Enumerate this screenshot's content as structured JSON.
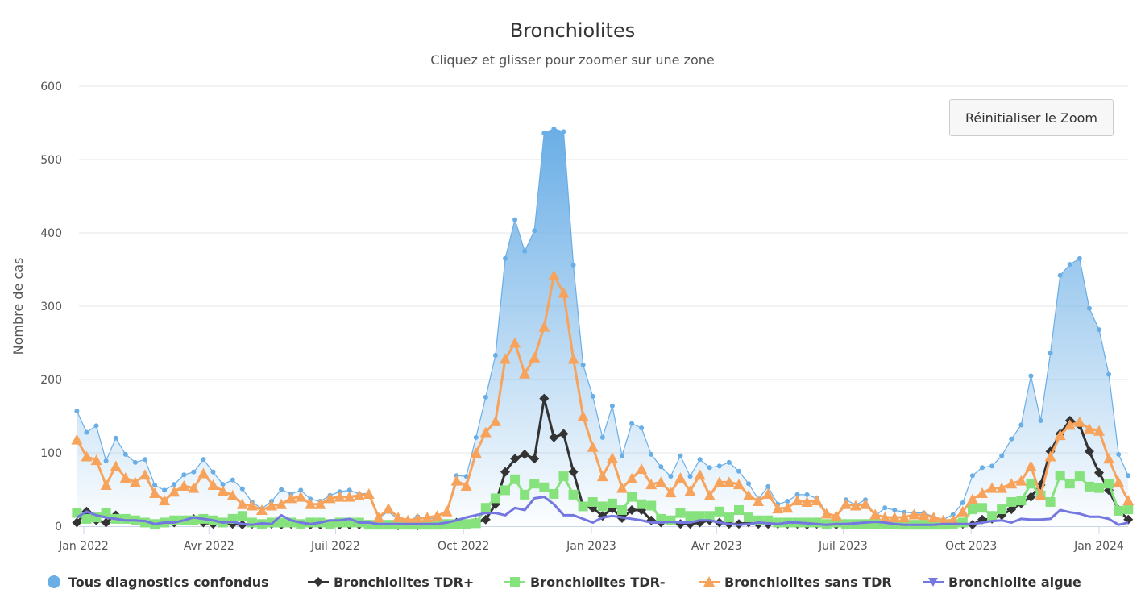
{
  "chart_data": {
    "type": "line",
    "title": "Bronchiolites",
    "subtitle": "Cliquez et glisser pour zoomer sur une zone",
    "ylabel": "Nombre de cas",
    "xlabel": "",
    "ylim": [
      0,
      600
    ],
    "y_ticks": [
      "0",
      "100",
      "200",
      "300",
      "400",
      "500",
      "600"
    ],
    "x_ticks": [
      {
        "label": "Jan 2022",
        "date": "2022-01-01"
      },
      {
        "label": "Avr 2022",
        "date": "2022-04-01"
      },
      {
        "label": "Juil 2022",
        "date": "2022-07-01"
      },
      {
        "label": "Oct 2022",
        "date": "2022-10-01"
      },
      {
        "label": "Jan 2023",
        "date": "2023-01-01"
      },
      {
        "label": "Avr 2023",
        "date": "2023-04-01"
      },
      {
        "label": "Juil 2023",
        "date": "2023-07-01"
      },
      {
        "label": "Oct 2023",
        "date": "2023-10-01"
      },
      {
        "label": "Jan 2024",
        "date": "2024-01-01"
      }
    ],
    "grid": true,
    "legend_position": "bottom",
    "x": [
      "2021-12-27",
      "2022-01-03",
      "2022-01-10",
      "2022-01-17",
      "2022-01-24",
      "2022-01-31",
      "2022-02-07",
      "2022-02-14",
      "2022-02-21",
      "2022-02-28",
      "2022-03-07",
      "2022-03-14",
      "2022-03-21",
      "2022-03-28",
      "2022-04-04",
      "2022-04-11",
      "2022-04-18",
      "2022-04-25",
      "2022-05-02",
      "2022-05-09",
      "2022-05-16",
      "2022-05-23",
      "2022-05-30",
      "2022-06-06",
      "2022-06-13",
      "2022-06-20",
      "2022-06-27",
      "2022-07-04",
      "2022-07-11",
      "2022-07-18",
      "2022-07-25",
      "2022-08-01",
      "2022-08-08",
      "2022-08-15",
      "2022-08-22",
      "2022-08-29",
      "2022-09-05",
      "2022-09-12",
      "2022-09-19",
      "2022-09-26",
      "2022-10-03",
      "2022-10-10",
      "2022-10-17",
      "2022-10-24",
      "2022-10-31",
      "2022-11-07",
      "2022-11-14",
      "2022-11-21",
      "2022-11-28",
      "2022-12-05",
      "2022-12-12",
      "2022-12-19",
      "2022-12-26",
      "2023-01-02",
      "2023-01-09",
      "2023-01-16",
      "2023-01-23",
      "2023-01-30",
      "2023-02-06",
      "2023-02-13",
      "2023-02-20",
      "2023-02-27",
      "2023-03-06",
      "2023-03-13",
      "2023-03-20",
      "2023-03-27",
      "2023-04-03",
      "2023-04-10",
      "2023-04-17",
      "2023-04-24",
      "2023-05-01",
      "2023-05-08",
      "2023-05-15",
      "2023-05-22",
      "2023-05-29",
      "2023-06-05",
      "2023-06-12",
      "2023-06-19",
      "2023-06-26",
      "2023-07-03",
      "2023-07-10",
      "2023-07-17",
      "2023-07-24",
      "2023-07-31",
      "2023-08-07",
      "2023-08-14",
      "2023-08-21",
      "2023-08-28",
      "2023-09-04",
      "2023-09-11",
      "2023-09-18",
      "2023-09-25",
      "2023-10-02",
      "2023-10-09",
      "2023-10-16",
      "2023-10-23",
      "2023-10-30",
      "2023-11-06",
      "2023-11-13",
      "2023-11-20",
      "2023-11-27",
      "2023-12-04",
      "2023-12-11",
      "2023-12-18",
      "2023-12-25",
      "2024-01-01",
      "2024-01-08",
      "2024-01-15",
      "2024-01-22"
    ],
    "series": [
      {
        "name": "Tous diagnostics confondus",
        "color": "#6aaee6",
        "marker": "circle",
        "kind": "area",
        "values": [
          157,
          128,
          137,
          89,
          120,
          98,
          87,
          91,
          56,
          49,
          57,
          70,
          74,
          91,
          74,
          57,
          63,
          51,
          33,
          24,
          34,
          50,
          44,
          49,
          37,
          34,
          42,
          47,
          49,
          44,
          45,
          11,
          20,
          9,
          7,
          13,
          9,
          12,
          20,
          69,
          68,
          121,
          176,
          233,
          365,
          418,
          375,
          403,
          536,
          542,
          538,
          356,
          220,
          177,
          121,
          164,
          96,
          140,
          134,
          98,
          81,
          68,
          96,
          68,
          91,
          80,
          82,
          87,
          75,
          58,
          37,
          54,
          30,
          34,
          43,
          43,
          38,
          19,
          13,
          36,
          29,
          36,
          14,
          25,
          22,
          19,
          18,
          18,
          13,
          9,
          16,
          32,
          69,
          80,
          82,
          96,
          119,
          138,
          205,
          144,
          236,
          342,
          357,
          365,
          297,
          268,
          207,
          98,
          69
        ]
      },
      {
        "name": "Bronchiolites TDR+",
        "color": "#333333",
        "marker": "diamond",
        "kind": "line",
        "values": [
          5,
          20,
          8,
          5,
          15,
          10,
          8,
          5,
          3,
          5,
          5,
          8,
          10,
          5,
          3,
          5,
          3,
          2,
          3,
          2,
          3,
          2,
          3,
          2,
          2,
          2,
          2,
          2,
          2,
          2,
          2,
          2,
          2,
          1,
          2,
          1,
          2,
          2,
          2,
          5,
          3,
          5,
          9,
          30,
          74,
          92,
          98,
          92,
          174,
          121,
          126,
          74,
          27,
          25,
          14,
          24,
          11,
          22,
          22,
          8,
          5,
          8,
          3,
          3,
          5,
          8,
          5,
          3,
          3,
          5,
          3,
          3,
          3,
          3,
          3,
          2,
          3,
          2,
          2,
          2,
          3,
          3,
          2,
          2,
          2,
          2,
          2,
          2,
          2,
          2,
          2,
          3,
          2,
          9,
          10,
          15,
          23,
          31,
          40,
          56,
          102,
          126,
          144,
          138,
          102,
          73,
          49,
          22,
          9
        ]
      },
      {
        "name": "Bronchiolites TDR-",
        "color": "#86e27c",
        "marker": "square",
        "kind": "line",
        "values": [
          18,
          10,
          12,
          18,
          10,
          10,
          8,
          5,
          3,
          5,
          8,
          8,
          8,
          10,
          8,
          5,
          10,
          14,
          5,
          3,
          5,
          5,
          5,
          3,
          5,
          5,
          3,
          5,
          5,
          5,
          2,
          2,
          2,
          2,
          2,
          2,
          2,
          2,
          3,
          3,
          3,
          4,
          25,
          38,
          49,
          64,
          43,
          58,
          53,
          44,
          68,
          43,
          27,
          33,
          27,
          31,
          22,
          40,
          30,
          28,
          10,
          8,
          18,
          14,
          14,
          14,
          20,
          12,
          22,
          12,
          8,
          8,
          5,
          5,
          5,
          5,
          5,
          3,
          5,
          3,
          3,
          3,
          3,
          3,
          3,
          2,
          2,
          2,
          2,
          2,
          3,
          5,
          23,
          25,
          14,
          23,
          33,
          35,
          58,
          42,
          33,
          69,
          58,
          68,
          54,
          52,
          58,
          21,
          23
        ]
      },
      {
        "name": "Bronchiolites sans TDR",
        "color": "#f7a35c",
        "marker": "triangle",
        "kind": "line",
        "values": [
          118,
          95,
          90,
          56,
          82,
          66,
          60,
          70,
          45,
          35,
          47,
          55,
          52,
          72,
          56,
          48,
          42,
          30,
          28,
          22,
          28,
          30,
          38,
          40,
          30,
          30,
          38,
          40,
          40,
          42,
          44,
          12,
          24,
          12,
          8,
          10,
          12,
          14,
          20,
          62,
          55,
          100,
          128,
          143,
          228,
          250,
          208,
          230,
          272,
          342,
          318,
          228,
          150,
          108,
          68,
          93,
          52,
          65,
          78,
          57,
          60,
          46,
          66,
          48,
          70,
          42,
          60,
          60,
          57,
          42,
          34,
          44,
          24,
          25,
          35,
          33,
          35,
          17,
          14,
          30,
          28,
          30,
          16,
          12,
          12,
          12,
          16,
          15,
          12,
          8,
          8,
          20,
          37,
          45,
          52,
          52,
          58,
          62,
          82,
          42,
          95,
          124,
          138,
          142,
          133,
          130,
          92,
          60,
          35
        ]
      },
      {
        "name": "Bronchiolite aigue",
        "color": "#7577e0",
        "marker": "triangle-down",
        "kind": "line",
        "values": [
          12,
          20,
          15,
          12,
          10,
          8,
          8,
          7,
          3,
          5,
          5,
          8,
          12,
          10,
          8,
          5,
          6,
          3,
          2,
          4,
          3,
          15,
          8,
          5,
          3,
          5,
          8,
          8,
          10,
          5,
          5,
          3,
          3,
          3,
          3,
          3,
          3,
          3,
          5,
          8,
          12,
          15,
          18,
          18,
          15,
          25,
          22,
          38,
          40,
          30,
          15,
          15,
          10,
          5,
          12,
          14,
          12,
          10,
          8,
          5,
          5,
          6,
          5,
          5,
          8,
          8,
          5,
          3,
          2,
          3,
          5,
          4,
          3,
          5,
          5,
          4,
          3,
          2,
          3,
          3,
          4,
          5,
          6,
          5,
          3,
          2,
          2,
          2,
          2,
          3,
          3,
          3,
          3,
          5,
          7,
          8,
          5,
          10,
          9,
          9,
          10,
          22,
          19,
          17,
          13,
          13,
          10,
          2,
          5
        ]
      }
    ]
  },
  "reset_zoom_label": "Réinitialiser le Zoom"
}
